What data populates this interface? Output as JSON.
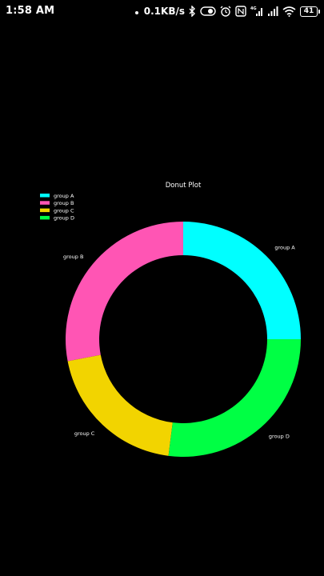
{
  "status_bar": {
    "time": "1:58 AM",
    "net_speed": "0.1KB/s",
    "network_type": "4G",
    "battery_level": "41",
    "icons": [
      "dots-icon",
      "bluetooth-icon",
      "toggle-icon",
      "alarm-icon",
      "nfc-icon",
      "signal-icon",
      "signal-icon",
      "wifi-icon",
      "battery-icon"
    ]
  },
  "chart_data": {
    "type": "pie",
    "title": "Donut Plot",
    "labels": [
      "group A",
      "group B",
      "group C",
      "group D"
    ],
    "values": [
      25,
      28,
      20,
      27
    ],
    "colors": [
      "#00ffff",
      "#ff55b4",
      "#f2d400",
      "#00ff44"
    ],
    "donut": true,
    "legend": "top-left",
    "counterclock": true,
    "start_angle": 0
  }
}
